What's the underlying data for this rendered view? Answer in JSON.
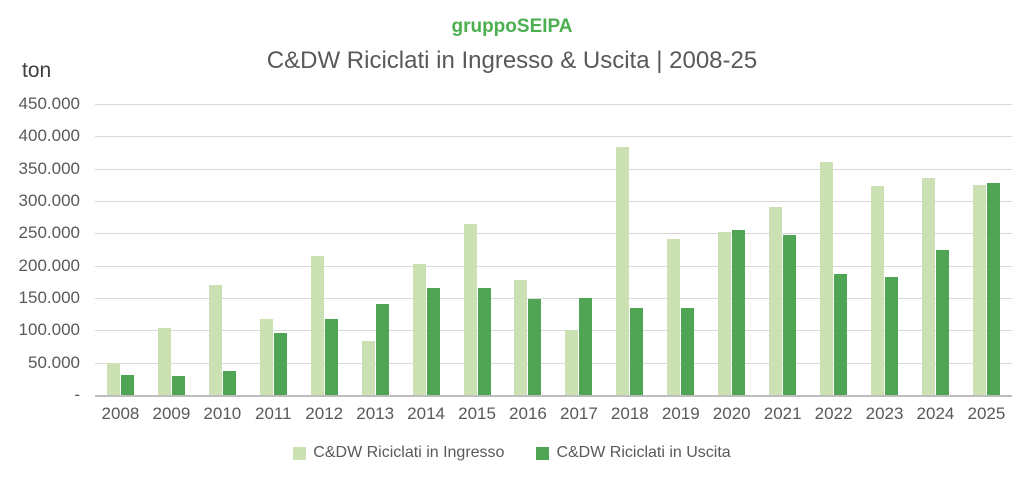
{
  "header": {
    "brand": "gruppoSEIPA",
    "title": "C&DW Riciclati in Ingresso & Uscita | 2008-25"
  },
  "axes": {
    "y_unit": "ton",
    "y_ticks": [
      "450.000",
      "400.000",
      "350.000",
      "300.000",
      "250.000",
      "200.000",
      "150.000",
      "100.000",
      "50.000",
      "-"
    ]
  },
  "colors": {
    "brand_green": "#4caf50",
    "title_gray": "#595959",
    "gridline": "#d9d9d9",
    "axis_line": "#bdbdbd",
    "ingresso_light_green": "#cbe1b4",
    "uscita_dark_green": "#4fa553"
  },
  "chart_data": {
    "type": "bar",
    "title": "C&DW Riciclati in Ingresso & Uscita | 2008-25",
    "subtitle": "gruppoSEIPA",
    "xlabel": "",
    "ylabel": "ton",
    "ylim": [
      0,
      450000
    ],
    "y_tick_step": 50000,
    "grid": true,
    "legend_position": "bottom",
    "categories": [
      "2008",
      "2009",
      "2010",
      "2011",
      "2012",
      "2013",
      "2014",
      "2015",
      "2016",
      "2017",
      "2018",
      "2019",
      "2020",
      "2021",
      "2022",
      "2023",
      "2024",
      "2025"
    ],
    "series": [
      {
        "name": "C&DW Riciclati in Ingresso",
        "color": "#cbe1b4",
        "values": [
          50000,
          103000,
          170000,
          117000,
          215000,
          84000,
          203000,
          265000,
          178000,
          100000,
          383000,
          242000,
          252000,
          290000,
          360000,
          323000,
          335000,
          325000
        ]
      },
      {
        "name": "C&DW Riciclati in Uscita",
        "color": "#4fa553",
        "values": [
          31000,
          30000,
          37000,
          96000,
          118000,
          140000,
          165000,
          165000,
          148000,
          150000,
          135000,
          135000,
          255000,
          248000,
          187000,
          182000,
          225000,
          328000
        ]
      }
    ]
  }
}
